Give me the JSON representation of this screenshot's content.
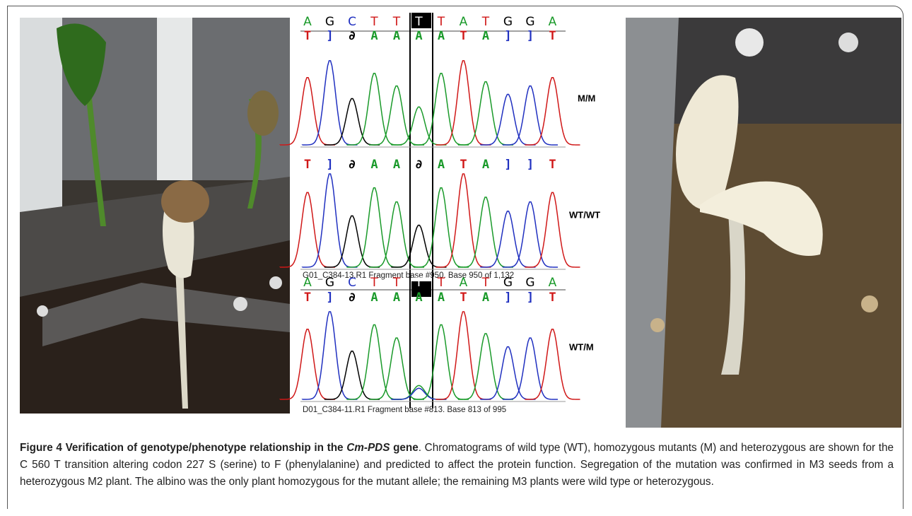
{
  "chromatogram": {
    "tracks": [
      {
        "top_bases": [
          "A",
          "G",
          "C",
          "T",
          "T",
          "T",
          "T",
          "A",
          "T",
          "G",
          "G",
          "A"
        ],
        "bases": [
          "T",
          "]",
          "∂",
          "A",
          "A",
          "A",
          "A",
          "T",
          "A",
          "]",
          "]",
          "T"
        ],
        "genotype": "M/M"
      },
      {
        "bases": [
          "T",
          "]",
          "∂",
          "A",
          "A",
          "∂",
          "A",
          "T",
          "A",
          "]",
          "]",
          "T"
        ],
        "genotype": "WT/WT",
        "footer": "G01_C384-13.R1 Fragment base #950. Base 950 of 1,132"
      },
      {
        "top_bases": [
          "A",
          "G",
          "C",
          "T",
          "T",
          "T",
          "T",
          "A",
          "T",
          "G",
          "G",
          "A"
        ],
        "bases": [
          "T",
          "]",
          "∂",
          "A",
          "A",
          "A",
          "A",
          "T",
          "A",
          "]",
          "]",
          "T"
        ],
        "genotype": "WT/M",
        "footer": "D01_C384-11.R1 Fragment base #813. Base 813 of 995"
      }
    ]
  },
  "caption": {
    "label": "Figure 4",
    "title_pre": "Verification of genotype/phenotype relationship in the ",
    "title_gene": "Cm-PDS",
    "title_post": " gene",
    "body": ". Chromatograms of wild type (WT), homozygous mutants (M) and heterozygous are shown for the C 560 T transition altering codon 227 S (serine) to F (phenylalanine) and predicted to affect the protein function. Segregation of the mutation was confirmed in M3 seeds from a heterozygous M2 plant. The albino was the only plant homozygous for the mutant allele; the remaining M3 plants were wild type or heterozygous."
  }
}
